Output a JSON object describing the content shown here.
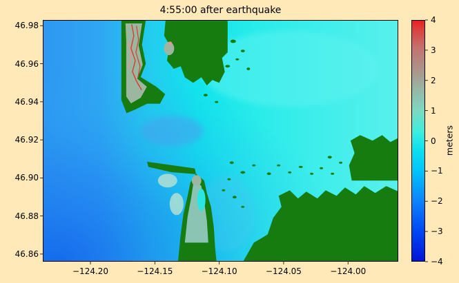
{
  "figure": {
    "background": "#ffe9b8"
  },
  "chart_data": {
    "type": "heatmap",
    "title": "4:55:00 after earthquake",
    "xlabel": "",
    "ylabel": "",
    "xlim": [
      -124.237,
      -123.961
    ],
    "ylim": [
      46.856,
      46.983
    ],
    "x_ticks": [
      -124.2,
      -124.15,
      -124.1,
      -124.05,
      -124.0
    ],
    "x_tick_labels": [
      "−124.20",
      "−124.15",
      "−124.10",
      "−124.05",
      "−124.00"
    ],
    "y_ticks": [
      46.98,
      46.96,
      46.94,
      46.92,
      46.9,
      46.88,
      46.86
    ],
    "y_tick_labels": [
      "46.98",
      "46.96",
      "46.94",
      "46.92",
      "46.90",
      "46.88",
      "46.86"
    ],
    "grid": false,
    "colorbar": {
      "label": "meters",
      "min": -4,
      "max": 4,
      "ticks": [
        4,
        3,
        2,
        1,
        0,
        -1,
        -2,
        -3,
        -4
      ],
      "tick_labels": [
        "4",
        "3",
        "2",
        "1",
        "0",
        "−1",
        "−2",
        "−3",
        "−4"
      ],
      "stops": [
        {
          "value": -4.0,
          "color": "#0013d8"
        },
        {
          "value": -3.0,
          "color": "#0046f4"
        },
        {
          "value": -2.0,
          "color": "#0c83fb"
        },
        {
          "value": -1.0,
          "color": "#00c4f8"
        },
        {
          "value": -0.3,
          "color": "#0ce0ee"
        },
        {
          "value": 0.3,
          "color": "#3deede"
        },
        {
          "value": 1.0,
          "color": "#7cd9c1"
        },
        {
          "value": 1.7,
          "color": "#97b6a4"
        },
        {
          "value": 2.4,
          "color": "#ad9289"
        },
        {
          "value": 3.1,
          "color": "#c4706c"
        },
        {
          "value": 3.7,
          "color": "#dc3f3c"
        },
        {
          "value": 4.0,
          "color": "#ea1d1d"
        }
      ]
    },
    "map": {
      "lon_range": [
        -124.237,
        -123.961
      ],
      "lat_range": [
        46.856,
        46.983
      ],
      "colors": {
        "land": "#177c10",
        "overwash": "#9cb79f",
        "flood": "#8cc4b4",
        "shoal": "#a9ded4",
        "lagoon": "#2ae6e2",
        "red": "#d63c34",
        "pink": "#ef8f93"
      },
      "ocean_gradient": [
        [
          0,
          "#2f97f2"
        ],
        [
          0.16,
          "#2fa6f3"
        ],
        [
          0.3,
          "#23ccee"
        ],
        [
          0.44,
          "#12e4ec"
        ],
        [
          0.62,
          "#2cecea"
        ],
        [
          1,
          "#59f0ec"
        ]
      ],
      "corner_gradient": [
        [
          0,
          "#0f5fea",
          0.8
        ],
        [
          0.35,
          "#1e7cf0",
          0.5
        ],
        [
          0.6,
          "#25a0f0",
          0.2
        ],
        [
          0.78,
          "#25a0f0",
          0
        ],
        [
          1,
          "#25a0f0",
          0
        ]
      ],
      "soft_water": [
        {
          "name": "entrance-drawdown",
          "cx": -124.1363,
          "cy": 46.9247,
          "rx": 0.0241,
          "ry": 0.008,
          "color": "#4aa0f0",
          "opacity": 0.55
        },
        {
          "name": "offshore-bright",
          "cx": -124.0453,
          "cy": 46.9573,
          "rx": 0.0696,
          "ry": 0.0199,
          "color": "#5ff2f0",
          "opacity": 0.5
        },
        {
          "name": "south-channel",
          "cx": -124.0935,
          "cy": 46.8812,
          "rx": 0.0214,
          "ry": 0.0199,
          "color": "#49c8f0",
          "opacity": 0.32
        }
      ],
      "land_polygons": [
        {
          "name": "land-north-spit",
          "points": [
            [
              -124.176,
              46.983
            ],
            [
              -124.157,
              46.983
            ],
            [
              -124.16,
              46.97
            ],
            [
              -124.157,
              46.96
            ],
            [
              -124.161,
              46.953
            ],
            [
              -124.149,
              46.948
            ],
            [
              -124.142,
              46.944
            ],
            [
              -124.146,
              46.939
            ],
            [
              -124.156,
              46.939
            ],
            [
              -124.165,
              46.936
            ],
            [
              -124.172,
              46.934
            ],
            [
              -124.176,
              46.941
            ]
          ]
        },
        {
          "name": "land-north-shore",
          "points": [
            [
              -124.1417,
              46.9826
            ],
            [
              -124.0935,
              46.9826
            ],
            [
              -124.0935,
              46.966
            ],
            [
              -124.0978,
              46.9631
            ],
            [
              -124.0957,
              46.9558
            ],
            [
              -124.1,
              46.95
            ],
            [
              -124.1053,
              46.9515
            ],
            [
              -124.1096,
              46.9486
            ],
            [
              -124.1139,
              46.9529
            ],
            [
              -124.1203,
              46.95
            ],
            [
              -124.1267,
              46.9529
            ],
            [
              -124.1299,
              46.9587
            ],
            [
              -124.1353,
              46.9573
            ],
            [
              -124.1406,
              46.9616
            ],
            [
              -124.1385,
              46.9696
            ],
            [
              -124.1428,
              46.9747
            ]
          ]
        },
        {
          "name": "land-entrance-spit",
          "points": [
            [
              -124.156,
              46.9085
            ],
            [
              -124.119,
              46.905
            ],
            [
              -124.118,
              46.902
            ],
            [
              -124.137,
              46.903
            ],
            [
              -124.155,
              46.9058
            ]
          ]
        },
        {
          "name": "land-south-peninsula",
          "points": [
            [
              -124.1181,
              46.9022
            ],
            [
              -124.1117,
              46.8986
            ],
            [
              -124.1096,
              46.8921
            ],
            [
              -124.1064,
              46.8848
            ],
            [
              -124.1042,
              46.874
            ],
            [
              -124.1032,
              46.8631
            ],
            [
              -124.1021,
              46.856
            ],
            [
              -124.132,
              46.856
            ],
            [
              -124.1299,
              46.8703
            ],
            [
              -124.1278,
              46.8812
            ],
            [
              -124.1246,
              46.8903
            ],
            [
              -124.1224,
              46.8975
            ]
          ]
        },
        {
          "name": "land-southeast",
          "points": [
            [
              -124.0817,
              46.8558
            ],
            [
              -124.0731,
              46.866
            ],
            [
              -124.0624,
              46.8703
            ],
            [
              -124.0581,
              46.879
            ],
            [
              -124.0517,
              46.8848
            ],
            [
              -124.0538,
              46.8906
            ],
            [
              -124.0453,
              46.8935
            ],
            [
              -124.0388,
              46.8892
            ],
            [
              -124.0324,
              46.8928
            ],
            [
              -124.0238,
              46.8892
            ],
            [
              -124.0174,
              46.8935
            ],
            [
              -124.0089,
              46.8906
            ],
            [
              -124.0024,
              46.895
            ],
            [
              -123.9939,
              46.8913
            ],
            [
              -123.9874,
              46.8957
            ],
            [
              -123.9789,
              46.8921
            ],
            [
              -123.9703,
              46.8957
            ],
            [
              -123.9607,
              46.8928
            ],
            [
              -123.9607,
              46.8558
            ]
          ]
        },
        {
          "name": "land-east-shore",
          "points": [
            [
              -123.9971,
              46.8986
            ],
            [
              -123.9992,
              46.9066
            ],
            [
              -123.9949,
              46.9131
            ],
            [
              -123.9981,
              46.9196
            ],
            [
              -123.9906,
              46.9225
            ],
            [
              -123.981,
              46.9196
            ],
            [
              -123.9735,
              46.9225
            ],
            [
              -123.9671,
              46.9189
            ],
            [
              -123.9607,
              46.9211
            ],
            [
              -123.9607,
              46.8986
            ]
          ]
        }
      ],
      "islets": [
        [
          -124.0892,
          46.9718,
          0.0043,
          0.0018
        ],
        [
          -124.0817,
          46.9667,
          0.0032,
          0.0014
        ],
        [
          -124.0935,
          46.9587,
          0.0037,
          0.0014
        ],
        [
          -124.0774,
          46.9573,
          0.0027,
          0.0014
        ],
        [
          -124.086,
          46.9623,
          0.0027,
          0.0011
        ],
        [
          -124.1106,
          46.9435,
          0.0032,
          0.0014
        ],
        [
          -124.1021,
          46.9399,
          0.0027,
          0.0011
        ],
        [
          -124.0903,
          46.908,
          0.0032,
          0.0014
        ],
        [
          -124.0817,
          46.9029,
          0.0037,
          0.0014
        ],
        [
          -124.0731,
          46.9066,
          0.0027,
          0.0011
        ],
        [
          -124.0614,
          46.9022,
          0.0032,
          0.0014
        ],
        [
          -124.0539,
          46.9066,
          0.0027,
          0.0011
        ],
        [
          -124.0453,
          46.9029,
          0.0027,
          0.0011
        ],
        [
          -124.0367,
          46.9058,
          0.0032,
          0.0011
        ],
        [
          -124.0282,
          46.9022,
          0.0027,
          0.0011
        ],
        [
          -124.0207,
          46.9051,
          0.0027,
          0.0011
        ],
        [
          -124.0121,
          46.9022,
          0.0027,
          0.0011
        ],
        [
          -124.0924,
          46.8993,
          0.0027,
          0.0011
        ],
        [
          -124.0967,
          46.8935,
          0.0027,
          0.0011
        ],
        [
          -124.0881,
          46.8899,
          0.0032,
          0.0014
        ],
        [
          -124.0817,
          46.8848,
          0.0027,
          0.0011
        ],
        [
          -124.0142,
          46.9109,
          0.0032,
          0.0014
        ],
        [
          -124.0057,
          46.908,
          0.0027,
          0.0011
        ]
      ],
      "patches": [
        {
          "name": "overwash-north-spit",
          "type": "polygon",
          "color": "overwash",
          "opacity": 1,
          "points": [
            [
              -124.1728,
              46.9812
            ],
            [
              -124.1599,
              46.9812
            ],
            [
              -124.1626,
              46.9696
            ],
            [
              -124.1594,
              46.9595
            ],
            [
              -124.1637,
              46.9522
            ],
            [
              -124.1562,
              46.9479
            ],
            [
              -124.161,
              46.9421
            ],
            [
              -124.1685,
              46.9392
            ],
            [
              -124.1722,
              46.9428
            ],
            [
              -124.1722,
              46.9718
            ]
          ]
        },
        {
          "name": "flood-south-peninsula",
          "type": "polygon",
          "color": "flood",
          "opacity": 1,
          "points": [
            [
              -124.1192,
              46.8993
            ],
            [
              -124.1139,
              46.8957
            ],
            [
              -124.1117,
              46.8877
            ],
            [
              -124.1096,
              46.8776
            ],
            [
              -124.1085,
              46.866
            ],
            [
              -124.1267,
              46.866
            ],
            [
              -124.1246,
              46.8794
            ],
            [
              -124.1219,
              46.8892
            ],
            [
              -124.1203,
              46.8964
            ]
          ]
        },
        {
          "name": "lagoon",
          "type": "ellipse",
          "color": "lagoon",
          "cx": -124.1139,
          "cy": 46.8885,
          "rx": 0.0032,
          "ry": 0.0058,
          "opacity": 1
        },
        {
          "name": "shoal-west",
          "type": "ellipse",
          "color": "shoal",
          "cx": -124.1401,
          "cy": 46.8986,
          "rx": 0.0075,
          "ry": 0.0036,
          "opacity": 0.9
        },
        {
          "name": "shoal-south",
          "type": "ellipse",
          "color": "shoal",
          "cx": -124.1331,
          "cy": 46.8863,
          "rx": 0.0054,
          "ry": 0.0058,
          "opacity": 0.9
        },
        {
          "name": "overwash-point",
          "type": "ellipse",
          "color": "overwash",
          "cx": -124.1176,
          "cy": 46.8986,
          "rx": 0.0037,
          "ry": 0.0029,
          "opacity": 1
        },
        {
          "name": "overwash-north-shore",
          "type": "ellipse",
          "color": "overwash",
          "cx": -124.139,
          "cy": 46.968,
          "rx": 0.004,
          "ry": 0.0035,
          "opacity": 1
        },
        {
          "name": "pink-spot",
          "type": "ellipse",
          "color": "pink",
          "cx": -124.1379,
          "cy": 46.9707,
          "rx": 0.0012,
          "ry": 0.001,
          "opacity": 1
        }
      ],
      "flow_lines": [
        {
          "name": "high-water-1",
          "color": "red",
          "width": 1.4,
          "points": [
            [
              -124.1679,
              46.9805
            ],
            [
              -124.1663,
              46.9747
            ],
            [
              -124.1685,
              46.9681
            ],
            [
              -124.1652,
              46.9616
            ],
            [
              -124.1674,
              46.9558
            ],
            [
              -124.1642,
              46.9508
            ],
            [
              -124.1604,
              46.9464
            ]
          ]
        },
        {
          "name": "high-water-2",
          "color": "red",
          "width": 1.2,
          "points": [
            [
              -124.1642,
              46.9797
            ],
            [
              -124.1626,
              46.9725
            ],
            [
              -124.1647,
              46.966
            ],
            [
              -124.1615,
              46.9587
            ],
            [
              -124.1631,
              46.9529
            ]
          ]
        },
        {
          "name": "high-water-3",
          "color": "pink",
          "width": 1.2,
          "points": [
            [
              -124.1701,
              46.9718
            ],
            [
              -124.1685,
              46.9631
            ],
            [
              -124.1706,
              46.9573
            ]
          ]
        }
      ]
    }
  }
}
